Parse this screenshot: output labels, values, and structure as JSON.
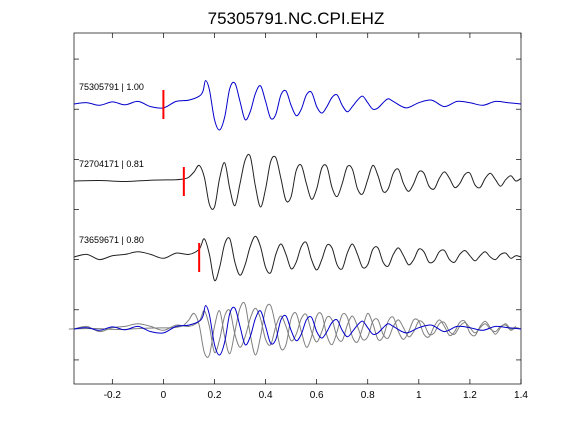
{
  "chart_data": {
    "type": "line",
    "title": "75305791.NC.CPI.EHZ",
    "xlabel": "",
    "ylabel": "",
    "xlim": [
      -0.35,
      1.4
    ],
    "x_ticks": [
      -0.2,
      0,
      0.2,
      0.4,
      0.6,
      0.8,
      1,
      1.2,
      1.4
    ],
    "x_tick_labels": [
      "-0.2",
      "0",
      "0.2",
      "0.4",
      "0.6",
      "0.8",
      "1",
      "1.2",
      "1.4"
    ],
    "y_tick_count": 7,
    "grid": false,
    "legend": "none",
    "colors": {
      "primary": "#0000cc",
      "secondary": "#222222",
      "overlay_gray": "#7f7f7f",
      "pick": "#ff0000",
      "axis": "#000000"
    },
    "series": [
      {
        "id": "trace-1",
        "label": "75305791 | 1.00",
        "color": "#0000cc",
        "pick_time": 0.0,
        "baseline_row": 1,
        "x": [
          -0.35,
          -0.3,
          -0.25,
          -0.2,
          -0.15,
          -0.1,
          -0.05,
          0,
          0.05,
          0.1,
          0.14,
          0.155,
          0.165,
          0.18,
          0.2,
          0.22,
          0.24,
          0.26,
          0.28,
          0.3,
          0.32,
          0.34,
          0.36,
          0.38,
          0.4,
          0.42,
          0.44,
          0.46,
          0.48,
          0.5,
          0.52,
          0.54,
          0.56,
          0.58,
          0.6,
          0.62,
          0.64,
          0.66,
          0.68,
          0.7,
          0.72,
          0.74,
          0.76,
          0.78,
          0.8,
          0.82,
          0.84,
          0.86,
          0.88,
          0.9,
          0.95,
          1.0,
          1.05,
          1.1,
          1.15,
          1.2,
          1.25,
          1.3,
          1.35,
          1.4
        ],
        "y": [
          0,
          0.05,
          -0.05,
          0.08,
          -0.03,
          0.1,
          -0.1,
          -0.15,
          0.1,
          0.15,
          0.3,
          0.5,
          0.9,
          0.55,
          -0.6,
          -1.0,
          -0.5,
          0.6,
          0.8,
          0.1,
          -0.6,
          -0.3,
          0.4,
          0.7,
          0.1,
          -0.55,
          -0.4,
          0.35,
          0.5,
          -0.05,
          -0.45,
          -0.2,
          0.35,
          0.45,
          -0.1,
          -0.35,
          -0.1,
          0.25,
          0.35,
          -0.05,
          -0.3,
          -0.1,
          0.15,
          0.3,
          0.05,
          -0.2,
          -0.15,
          0.05,
          0.2,
          0.1,
          -0.15,
          0.05,
          0.15,
          -0.1,
          0.1,
          0.05,
          -0.05,
          0.1,
          0.05,
          0.0
        ]
      },
      {
        "id": "trace-2",
        "label": "72704171 | 0.81",
        "color": "#222222",
        "pick_time": 0.08,
        "baseline_row": 2,
        "x": [
          -0.35,
          -0.25,
          -0.15,
          -0.05,
          0.05,
          0.08,
          0.1,
          0.12,
          0.14,
          0.16,
          0.18,
          0.2,
          0.22,
          0.24,
          0.26,
          0.28,
          0.3,
          0.32,
          0.34,
          0.36,
          0.38,
          0.4,
          0.42,
          0.44,
          0.46,
          0.48,
          0.5,
          0.52,
          0.54,
          0.56,
          0.58,
          0.6,
          0.62,
          0.64,
          0.66,
          0.68,
          0.7,
          0.72,
          0.74,
          0.76,
          0.78,
          0.8,
          0.82,
          0.84,
          0.86,
          0.88,
          0.9,
          0.92,
          0.94,
          0.96,
          0.98,
          1.0,
          1.02,
          1.04,
          1.06,
          1.08,
          1.1,
          1.12,
          1.14,
          1.16,
          1.18,
          1.2,
          1.22,
          1.24,
          1.26,
          1.28,
          1.3,
          1.32,
          1.34,
          1.36,
          1.38,
          1.4
        ],
        "y": [
          0,
          0.02,
          -0.02,
          0.03,
          0.05,
          0.08,
          0.15,
          0.35,
          0.6,
          0.15,
          -0.9,
          -1.0,
          0.1,
          0.7,
          -0.3,
          -0.95,
          -0.1,
          0.8,
          0.95,
          -0.2,
          -1.0,
          -0.3,
          0.75,
          0.9,
          0.1,
          -0.75,
          -0.6,
          0.4,
          0.6,
          -0.1,
          -0.7,
          -0.3,
          0.5,
          0.55,
          -0.25,
          -0.6,
          -0.1,
          0.55,
          0.45,
          -0.3,
          -0.5,
          0.05,
          0.6,
          0.2,
          -0.4,
          -0.3,
          0.3,
          0.45,
          -0.1,
          -0.4,
          -0.1,
          0.35,
          0.3,
          -0.2,
          -0.3,
          0.1,
          0.35,
          0.1,
          -0.25,
          -0.1,
          0.25,
          0.3,
          -0.15,
          -0.25,
          0.1,
          0.3,
          0.05,
          -0.2,
          0.05,
          0.2,
          0.0,
          0.1
        ]
      },
      {
        "id": "trace-3",
        "label": "73659671 | 0.80",
        "color": "#222222",
        "pick_time": 0.14,
        "baseline_row": 3,
        "x": [
          -0.35,
          -0.3,
          -0.25,
          -0.2,
          -0.15,
          -0.1,
          -0.05,
          0,
          0.05,
          0.1,
          0.14,
          0.16,
          0.18,
          0.2,
          0.22,
          0.24,
          0.26,
          0.28,
          0.3,
          0.32,
          0.34,
          0.36,
          0.38,
          0.4,
          0.42,
          0.44,
          0.46,
          0.48,
          0.5,
          0.52,
          0.54,
          0.56,
          0.58,
          0.6,
          0.62,
          0.64,
          0.66,
          0.68,
          0.7,
          0.72,
          0.74,
          0.76,
          0.78,
          0.8,
          0.82,
          0.84,
          0.86,
          0.88,
          0.9,
          0.92,
          0.94,
          0.96,
          0.98,
          1.0,
          1.02,
          1.04,
          1.06,
          1.08,
          1.1,
          1.12,
          1.14,
          1.16,
          1.18,
          1.2,
          1.22,
          1.24,
          1.26,
          1.28,
          1.3,
          1.32,
          1.34,
          1.36,
          1.38,
          1.4
        ],
        "y": [
          0,
          0.1,
          -0.1,
          0.05,
          0.1,
          0.2,
          0.1,
          -0.05,
          0.15,
          0.1,
          0.3,
          0.7,
          0.1,
          -0.9,
          -0.4,
          0.5,
          0.7,
          -0.2,
          -0.7,
          -0.3,
          0.4,
          0.8,
          0.4,
          -0.4,
          -0.6,
          0.1,
          0.5,
          0.1,
          -0.45,
          -0.2,
          0.4,
          0.55,
          -0.1,
          -0.5,
          -0.1,
          0.45,
          0.35,
          -0.3,
          -0.45,
          0.15,
          0.5,
          0.1,
          -0.4,
          -0.3,
          0.3,
          0.35,
          -0.2,
          -0.35,
          0.1,
          0.35,
          0.05,
          -0.3,
          -0.1,
          0.3,
          0.2,
          -0.2,
          -0.15,
          0.2,
          0.25,
          -0.1,
          -0.2,
          0.1,
          0.25,
          0.05,
          -0.15,
          0.05,
          0.2,
          0.0,
          -0.1,
          0.1,
          0.15,
          -0.05,
          0.05,
          0.0
        ]
      }
    ],
    "overlay": {
      "id": "stack",
      "baseline_row": 4,
      "description_series": [
        "trace-1",
        "trace-2",
        "trace-3"
      ]
    }
  }
}
